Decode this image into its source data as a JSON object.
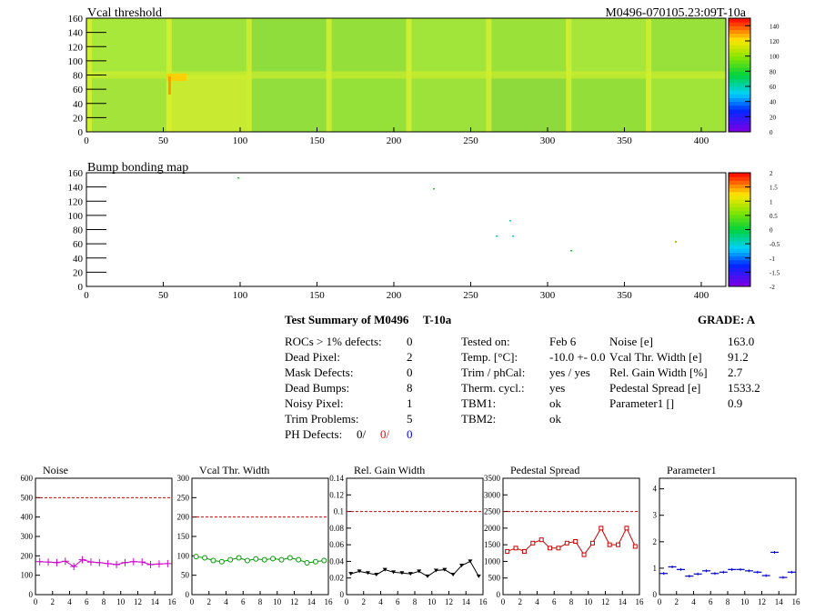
{
  "vcal_map": {
    "title": "Vcal threshold",
    "module_label": "M0496-070105.23:09T-10a",
    "xlim": [
      0,
      416
    ],
    "ylim": [
      0,
      160
    ],
    "x_ticks": [
      "0",
      "50",
      "100",
      "150",
      "200",
      "250",
      "300",
      "350",
      "400"
    ],
    "y_ticks": [
      "0",
      "20",
      "40",
      "60",
      "80",
      "100",
      "120",
      "140",
      "160"
    ],
    "palette_ticks": [
      "0",
      "20",
      "40",
      "60",
      "80",
      "100",
      "120",
      "140"
    ]
  },
  "bump_map": {
    "title": "Bump bonding map",
    "xlim": [
      0,
      416
    ],
    "ylim": [
      0,
      160
    ],
    "x_ticks": [
      "0",
      "50",
      "100",
      "150",
      "200",
      "250",
      "300",
      "350",
      "400"
    ],
    "y_ticks": [
      "0",
      "20",
      "40",
      "60",
      "80",
      "100",
      "120",
      "140",
      "160"
    ],
    "palette_ticks": [
      "-2",
      "-1.5",
      "-1",
      "-0.5",
      "0",
      "0.5",
      "1",
      "1.5",
      "2"
    ]
  },
  "summary": {
    "heading": "Test Summary of M0496",
    "module_type": "T-10a",
    "grade": "GRADE:  A",
    "left": [
      {
        "label": "ROCs > 1% defects:",
        "value": "0"
      },
      {
        "label": "Dead Pixel:",
        "value": "2"
      },
      {
        "label": "Mask Defects:",
        "value": "0"
      },
      {
        "label": "Dead Bumps:",
        "value": "8"
      },
      {
        "label": "Noisy Pixel:",
        "value": "1"
      },
      {
        "label": "Trim Problems:",
        "value": "5"
      }
    ],
    "ph_label": "PH Defects:",
    "ph_values": [
      "0/",
      "0/",
      "0"
    ],
    "middle": [
      {
        "label": "Tested on:",
        "value": "Feb 6"
      },
      {
        "label": "Temp. [°C]:",
        "value": "-10.0 +- 0.0"
      },
      {
        "label": "Trim / phCal:",
        "value": "yes / yes"
      },
      {
        "label": "Therm. cycl.:",
        "value": "yes"
      },
      {
        "label": "TBM1:",
        "value": "ok"
      },
      {
        "label": "TBM2:",
        "value": "ok"
      }
    ],
    "right": [
      {
        "label": "Noise [e]",
        "value": "163.0"
      },
      {
        "label": "Vcal Thr. Width [e]",
        "value": "91.2"
      },
      {
        "label": "Rel. Gain Width [%]",
        "value": "2.7"
      },
      {
        "label": "Pedestal Spread [e]",
        "value": "1533.2"
      },
      {
        "label": "Parameter1 []",
        "value": "0.9"
      }
    ]
  },
  "chart_data": [
    {
      "type": "line",
      "title": "Noise",
      "color": "#cc00cc",
      "marker": "cross",
      "ylim": [
        0,
        600
      ],
      "yticks": [
        0,
        100,
        200,
        300,
        400,
        500,
        600
      ],
      "xticks": [
        0,
        2,
        4,
        6,
        8,
        10,
        12,
        14,
        16
      ],
      "limit_line": 500,
      "x": [
        0,
        1,
        2,
        3,
        4,
        5,
        6,
        7,
        8,
        9,
        10,
        11,
        12,
        13,
        14,
        15
      ],
      "values": [
        170,
        168,
        165,
        172,
        145,
        180,
        168,
        165,
        160,
        155,
        165,
        170,
        168,
        155,
        158,
        160
      ]
    },
    {
      "type": "line",
      "title": "Vcal Thr. Width",
      "color": "#009900",
      "marker": "circle",
      "ylim": [
        0,
        300
      ],
      "yticks": [
        0,
        50,
        100,
        150,
        200,
        250,
        300
      ],
      "xticks": [
        0,
        2,
        4,
        6,
        8,
        10,
        12,
        14,
        16
      ],
      "limit_line": 200,
      "x": [
        0,
        1,
        2,
        3,
        4,
        5,
        6,
        7,
        8,
        9,
        10,
        11,
        12,
        13,
        14,
        15
      ],
      "values": [
        98,
        95,
        88,
        85,
        90,
        95,
        88,
        92,
        90,
        93,
        90,
        95,
        90,
        82,
        85,
        88
      ]
    },
    {
      "type": "line",
      "title": "Rel. Gain Width",
      "color": "#000000",
      "marker": "triangle",
      "ylim": [
        0,
        0.14
      ],
      "yticks": [
        0,
        0.02,
        0.04,
        0.06,
        0.08,
        0.1,
        0.12,
        0.14
      ],
      "xticks": [
        0,
        2,
        4,
        6,
        8,
        10,
        12,
        14,
        16
      ],
      "limit_line": 0.1,
      "x": [
        0,
        1,
        2,
        3,
        4,
        5,
        6,
        7,
        8,
        9,
        10,
        11,
        12,
        13,
        14,
        15
      ],
      "values": [
        0.025,
        0.028,
        0.026,
        0.024,
        0.03,
        0.027,
        0.026,
        0.025,
        0.028,
        0.022,
        0.029,
        0.03,
        0.024,
        0.035,
        0.04,
        0.022
      ]
    },
    {
      "type": "line",
      "title": "Pedestal Spread",
      "color": "#cc0000",
      "marker": "square",
      "ylim": [
        0,
        3500
      ],
      "yticks": [
        0,
        500,
        1000,
        1500,
        2000,
        2500,
        3000,
        3500
      ],
      "xticks": [
        0,
        2,
        4,
        6,
        8,
        10,
        12,
        14,
        16
      ],
      "limit_line": 2500,
      "x": [
        0,
        1,
        2,
        3,
        4,
        5,
        6,
        7,
        8,
        9,
        10,
        11,
        12,
        13,
        14,
        15
      ],
      "values": [
        1300,
        1400,
        1300,
        1550,
        1650,
        1400,
        1400,
        1550,
        1600,
        1200,
        1550,
        2000,
        1500,
        1500,
        2000,
        1450
      ]
    },
    {
      "type": "scatter",
      "title": "Parameter1",
      "color": "#0000cc",
      "marker": "hbar",
      "ylim": [
        0,
        4.4
      ],
      "yticks": [
        0,
        1,
        2,
        3,
        4
      ],
      "xticks": [
        0,
        2,
        4,
        6,
        8,
        10,
        12,
        14,
        16
      ],
      "x": [
        0,
        1,
        2,
        3,
        4,
        5,
        6,
        7,
        8,
        9,
        10,
        11,
        12,
        13,
        14,
        15
      ],
      "values": [
        0.8,
        1.05,
        0.95,
        0.7,
        0.78,
        0.9,
        0.8,
        0.85,
        0.95,
        0.95,
        0.9,
        0.85,
        0.72,
        1.6,
        0.65,
        0.85
      ]
    }
  ]
}
